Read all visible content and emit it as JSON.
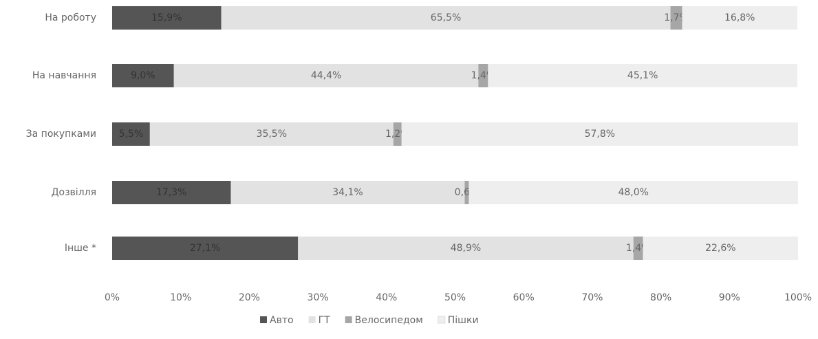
{
  "chart_data": {
    "type": "stacked-bar-horizontal",
    "categories": [
      "На роботу",
      "На навчання",
      "За покупками",
      "Дозвілля",
      "Інше *"
    ],
    "series": [
      {
        "name": "Авто",
        "color": "#555555",
        "values": [
          15.9,
          9.0,
          5.5,
          17.3,
          27.1
        ],
        "value_labels": [
          "15,9%",
          "9,0%",
          "5,5%",
          "17,3%",
          "27,1%"
        ]
      },
      {
        "name": "ГТ",
        "color": "#e2e2e2",
        "values": [
          65.5,
          44.4,
          35.5,
          34.1,
          48.9
        ],
        "value_labels": [
          "65,5%",
          "44,4%",
          "35,5%",
          "34,1%",
          "48,9%"
        ]
      },
      {
        "name": "Велосипедом",
        "color": "#a6a6a6",
        "values": [
          1.7,
          1.4,
          1.2,
          0.6,
          1.4
        ],
        "value_labels": [
          "1,7%",
          "1,4%",
          "1,2%",
          "0,6%",
          "1,4%"
        ]
      },
      {
        "name": "Пішки",
        "color": "#eeeeee",
        "values": [
          16.8,
          45.1,
          57.8,
          48.0,
          22.6
        ],
        "value_labels": [
          "16,8%",
          "45,1%",
          "57,8%",
          "48,0%",
          "22,6%"
        ]
      }
    ],
    "xlim": [
      0,
      100
    ],
    "xticks": [
      {
        "value": 0,
        "label": "0%"
      },
      {
        "value": 10,
        "label": "10%"
      },
      {
        "value": 20,
        "label": "20%"
      },
      {
        "value": 30,
        "label": "30%"
      },
      {
        "value": 40,
        "label": "40%"
      },
      {
        "value": 50,
        "label": "50%"
      },
      {
        "value": 60,
        "label": "60%"
      },
      {
        "value": 70,
        "label": "70%"
      },
      {
        "value": 80,
        "label": "80%"
      },
      {
        "value": 90,
        "label": "90%"
      },
      {
        "value": 100,
        "label": "100%"
      }
    ],
    "legend": "bottom"
  }
}
